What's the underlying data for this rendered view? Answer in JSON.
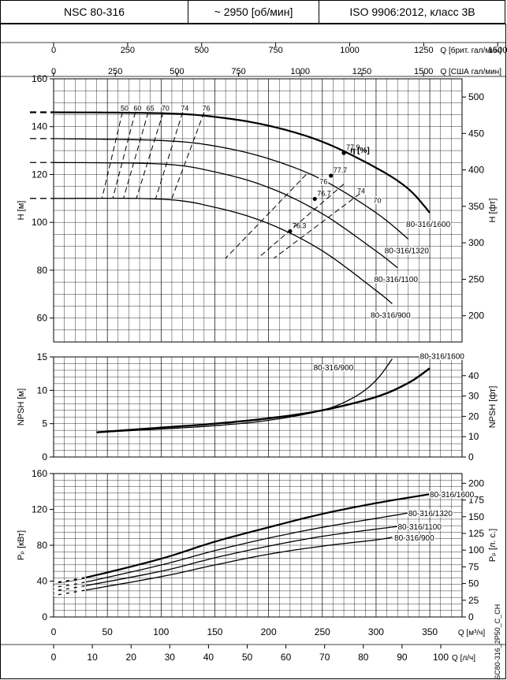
{
  "header": {
    "model": "NSC 80-316",
    "speed": "~ 2950 [об/мин]",
    "standard": "ISO 9906:2012, класс 3В"
  },
  "watermark": "NSC80-316_2P50_C_CH",
  "axes": {
    "top_uk": {
      "label": "Q [брит. гал/мин]",
      "ticks": [
        "0",
        "250",
        "500",
        "750",
        "1000",
        "1250",
        "1500"
      ]
    },
    "top_us": {
      "label": "Q [США гал/мин]",
      "ticks": [
        "0",
        "250",
        "500",
        "750",
        "1000",
        "1250",
        "1500"
      ]
    },
    "bottom_m3h": {
      "label": "Q [м³/ч]",
      "ticks": [
        "0",
        "50",
        "100",
        "150",
        "200",
        "250",
        "300",
        "350"
      ]
    },
    "bottom_ls": {
      "label": "Q [л/ч]",
      "ticks": [
        "0",
        "10",
        "20",
        "30",
        "40",
        "50",
        "60",
        "70",
        "80",
        "90",
        "100"
      ]
    }
  },
  "chart_data": [
    {
      "type": "line",
      "title": "H",
      "ylabel": "H [м]",
      "ylabel_right": "H [фт]",
      "xlabel": "Q [м³/ч]",
      "xlim": [
        0,
        380
      ],
      "ylim": [
        50,
        160
      ],
      "yticks": [
        "60",
        "80",
        "100",
        "120",
        "140",
        "160"
      ],
      "yticks_right": [
        "200",
        "250",
        "300",
        "350",
        "400",
        "450",
        "500"
      ],
      "efficiency_label": "η [%]",
      "series": [
        {
          "name": "80-316/1600",
          "x": [
            0,
            100,
            150,
            200,
            250,
            300,
            330,
            350
          ],
          "y": [
            146,
            145.6,
            144.1,
            140.4,
            133.7,
            122.8,
            114,
            104
          ]
        },
        {
          "name": "80-316/1320",
          "x": [
            0,
            100,
            150,
            200,
            250,
            300,
            330
          ],
          "y": [
            135,
            134.2,
            131.9,
            126.6,
            117.8,
            104,
            93
          ]
        },
        {
          "name": "80-316/1100",
          "x": [
            0,
            100,
            150,
            200,
            250,
            300,
            320
          ],
          "y": [
            125,
            124.4,
            121.1,
            114.6,
            103.6,
            88,
            81
          ]
        },
        {
          "name": "80-316/900",
          "x": [
            0,
            100,
            150,
            200,
            250,
            300,
            315
          ],
          "y": [
            110,
            109.7,
            106.3,
            99.5,
            88.1,
            71.5,
            66
          ]
        }
      ],
      "efficiency_lines": [
        "50",
        "60",
        "65",
        "70",
        "74",
        "76",
        "76",
        "74",
        "70"
      ],
      "points": [
        {
          "label": "77.9",
          "x": 270,
          "y": 129
        },
        {
          "label": "77.7",
          "x": 258,
          "y": 119.5
        },
        {
          "label": "76.7",
          "x": 243,
          "y": 109.8
        },
        {
          "label": "76.3",
          "x": 220,
          "y": 96.3
        }
      ]
    },
    {
      "type": "line",
      "title": "NPSH",
      "ylabel": "NPSH [м]",
      "ylabel_right": "NPSH [фт]",
      "xlim": [
        0,
        380
      ],
      "ylim": [
        0,
        15
      ],
      "yticks": [
        "0",
        "5",
        "10",
        "15"
      ],
      "yticks_right": [
        "0",
        "10",
        "20",
        "30",
        "40"
      ],
      "series": [
        {
          "name": "80-316/1600",
          "x": [
            40,
            100,
            150,
            200,
            250,
            300,
            330,
            350
          ],
          "y": [
            3.7,
            4.4,
            5.0,
            5.8,
            7.0,
            9.0,
            11.1,
            13.3
          ]
        },
        {
          "name": "80-316/900",
          "x": [
            40,
            100,
            150,
            200,
            250,
            280,
            300,
            315
          ],
          "y": [
            3.7,
            4.2,
            4.7,
            5.5,
            7.0,
            9.0,
            11.5,
            14.7
          ]
        }
      ]
    },
    {
      "type": "line",
      "title": "P",
      "ylabel": "Pₚ [кВт]",
      "ylabel_right": "Pₚ [л. с.]",
      "xlim": [
        0,
        380
      ],
      "ylim": [
        0,
        160
      ],
      "yticks": [
        "0",
        "40",
        "80",
        "120",
        "160"
      ],
      "yticks_right": [
        "0",
        "25",
        "50",
        "75",
        "100",
        "125",
        "150",
        "175",
        "200"
      ],
      "series": [
        {
          "name": "80-316/1600",
          "x": [
            0,
            30,
            100,
            150,
            200,
            250,
            300,
            350
          ],
          "y": [
            38,
            44,
            65,
            84,
            100,
            115,
            127,
            137
          ]
        },
        {
          "name": "80-316/1320",
          "x": [
            0,
            30,
            100,
            150,
            200,
            250,
            300,
            330
          ],
          "y": [
            33,
            39,
            58,
            74,
            88,
            100,
            110,
            116
          ]
        },
        {
          "name": "80-316/1100",
          "x": [
            0,
            30,
            100,
            150,
            200,
            250,
            300,
            320
          ],
          "y": [
            29,
            35,
            51,
            66,
            79,
            90,
            98,
            101
          ]
        },
        {
          "name": "80-316/900",
          "x": [
            0,
            30,
            100,
            150,
            200,
            250,
            300,
            315
          ],
          "y": [
            24,
            30,
            45,
            58,
            70,
            79,
            86,
            89
          ]
        }
      ]
    }
  ]
}
